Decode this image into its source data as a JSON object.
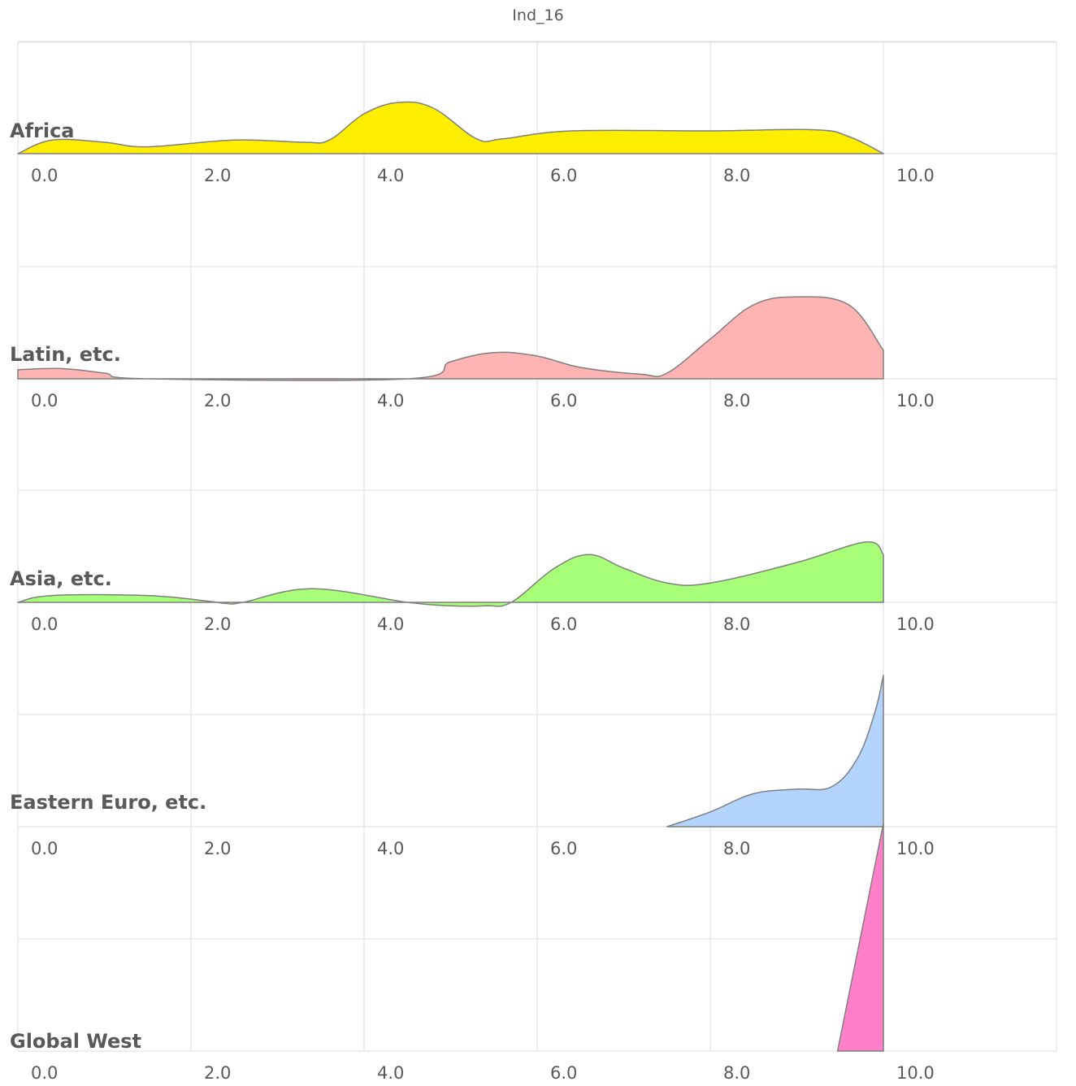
{
  "chart_data": {
    "type": "area",
    "subtype": "ridgeline",
    "title": "Ind_16",
    "xlim": [
      0,
      12
    ],
    "tick_values": [
      0,
      2,
      4,
      6,
      8,
      10
    ],
    "tick_labels": [
      "0.0",
      "2.0",
      "4.0",
      "6.0",
      "8.0",
      "10.0"
    ],
    "grid": true,
    "legend": "none",
    "series": [
      {
        "name": "Africa",
        "color": "#FFEE00",
        "points": [
          [
            0,
            0
          ],
          [
            0.4,
            0.12
          ],
          [
            1.0,
            0.1
          ],
          [
            1.5,
            0.06
          ],
          [
            2.5,
            0.12
          ],
          [
            3.3,
            0.1
          ],
          [
            3.6,
            0.12
          ],
          [
            4.0,
            0.35
          ],
          [
            4.4,
            0.45
          ],
          [
            4.8,
            0.4
          ],
          [
            5.3,
            0.13
          ],
          [
            5.6,
            0.13
          ],
          [
            6.4,
            0.2
          ],
          [
            8.0,
            0.2
          ],
          [
            9.2,
            0.21
          ],
          [
            9.6,
            0.15
          ],
          [
            10.0,
            0
          ]
        ]
      },
      {
        "name": "Latin, etc.",
        "color": "#FFB3B3",
        "points": [
          [
            0,
            0.08
          ],
          [
            0.5,
            0.09
          ],
          [
            1.0,
            0.05
          ],
          [
            1.5,
            0
          ],
          [
            4.5,
            0
          ],
          [
            5.0,
            0.15
          ],
          [
            5.5,
            0.23
          ],
          [
            6.0,
            0.2
          ],
          [
            6.5,
            0.1
          ],
          [
            7.2,
            0.04
          ],
          [
            7.5,
            0.05
          ],
          [
            8.0,
            0.35
          ],
          [
            8.5,
            0.65
          ],
          [
            9.0,
            0.72
          ],
          [
            9.6,
            0.65
          ],
          [
            10.0,
            0.25
          ]
        ]
      },
      {
        "name": "Asia, etc.",
        "color": "#A8FF78",
        "points": [
          [
            0,
            0
          ],
          [
            0.4,
            0.06
          ],
          [
            1.5,
            0.06
          ],
          [
            2.2,
            0.01
          ],
          [
            2.4,
            -0.01
          ],
          [
            2.6,
            0
          ],
          [
            3.4,
            0.12
          ],
          [
            4.5,
            0
          ],
          [
            5.0,
            -0.03
          ],
          [
            5.4,
            -0.03
          ],
          [
            5.7,
            0
          ],
          [
            6.2,
            0.3
          ],
          [
            6.6,
            0.42
          ],
          [
            7.0,
            0.3
          ],
          [
            7.5,
            0.17
          ],
          [
            8.0,
            0.17
          ],
          [
            9.0,
            0.35
          ],
          [
            9.8,
            0.53
          ],
          [
            10.0,
            0.42
          ]
        ]
      },
      {
        "name": "Eastern Euro, etc.",
        "color": "#B3D4FF",
        "points": [
          [
            7.5,
            0
          ],
          [
            8.0,
            0.13
          ],
          [
            8.5,
            0.29
          ],
          [
            9.0,
            0.33
          ],
          [
            9.4,
            0.35
          ],
          [
            9.7,
            0.6
          ],
          [
            9.9,
            1.0
          ],
          [
            10.0,
            1.33
          ]
        ]
      },
      {
        "name": "Global West",
        "color": "#FF80C8",
        "points": [
          [
            9.47,
            0
          ],
          [
            10.0,
            2.0
          ],
          [
            10.0,
            0
          ]
        ]
      }
    ]
  }
}
